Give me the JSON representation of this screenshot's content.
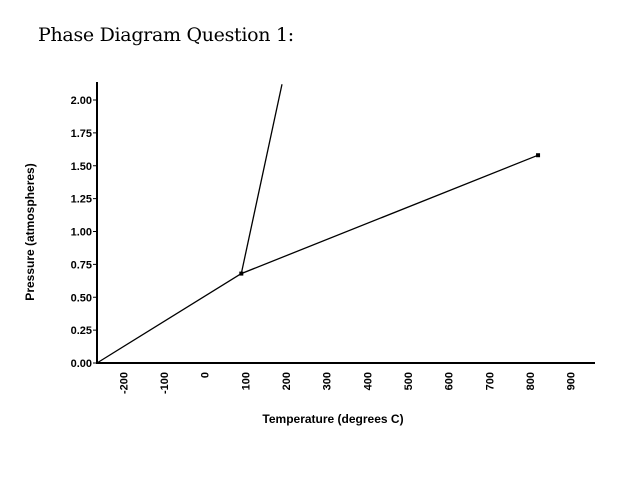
{
  "page": {
    "heading": "Phase Diagram Question 1:"
  },
  "chart_data": {
    "type": "line",
    "title": "",
    "xlabel": "Temperature (degrees C)",
    "ylabel": "Pressure (atmospheres)",
    "xlim": [
      -265,
      960
    ],
    "ylim": [
      0,
      2.1
    ],
    "x_ticks": [
      -200,
      -100,
      0,
      100,
      200,
      300,
      400,
      500,
      600,
      700,
      800,
      900
    ],
    "x_tick_labels": [
      "-200",
      "-100",
      "0",
      "100",
      "200",
      "300",
      "400",
      "500",
      "600",
      "700",
      "800",
      "900"
    ],
    "y_ticks": [
      0,
      0.25,
      0.5,
      0.75,
      1.0,
      1.25,
      1.5,
      1.75,
      2.0
    ],
    "y_tick_labels": [
      "0.00",
      "0.25",
      "0.50",
      "0.75",
      "1.00",
      "1.25",
      "1.50",
      "1.75",
      "2.00"
    ],
    "grid": false,
    "legend": "none",
    "series": [
      {
        "key": "sublimation-curve",
        "x": [
          -265,
          90
        ],
        "y": [
          0,
          0.68
        ]
      },
      {
        "key": "vaporization-curve",
        "x": [
          90,
          820
        ],
        "y": [
          0.68,
          1.58
        ]
      },
      {
        "key": "fusion-curve",
        "x": [
          90,
          190
        ],
        "y": [
          0.68,
          2.12
        ]
      }
    ],
    "points": [
      {
        "key": "triple-point",
        "x": 90,
        "y": 0.68
      },
      {
        "key": "critical-point",
        "x": 820,
        "y": 1.58
      }
    ],
    "line_color": "#000000"
  }
}
